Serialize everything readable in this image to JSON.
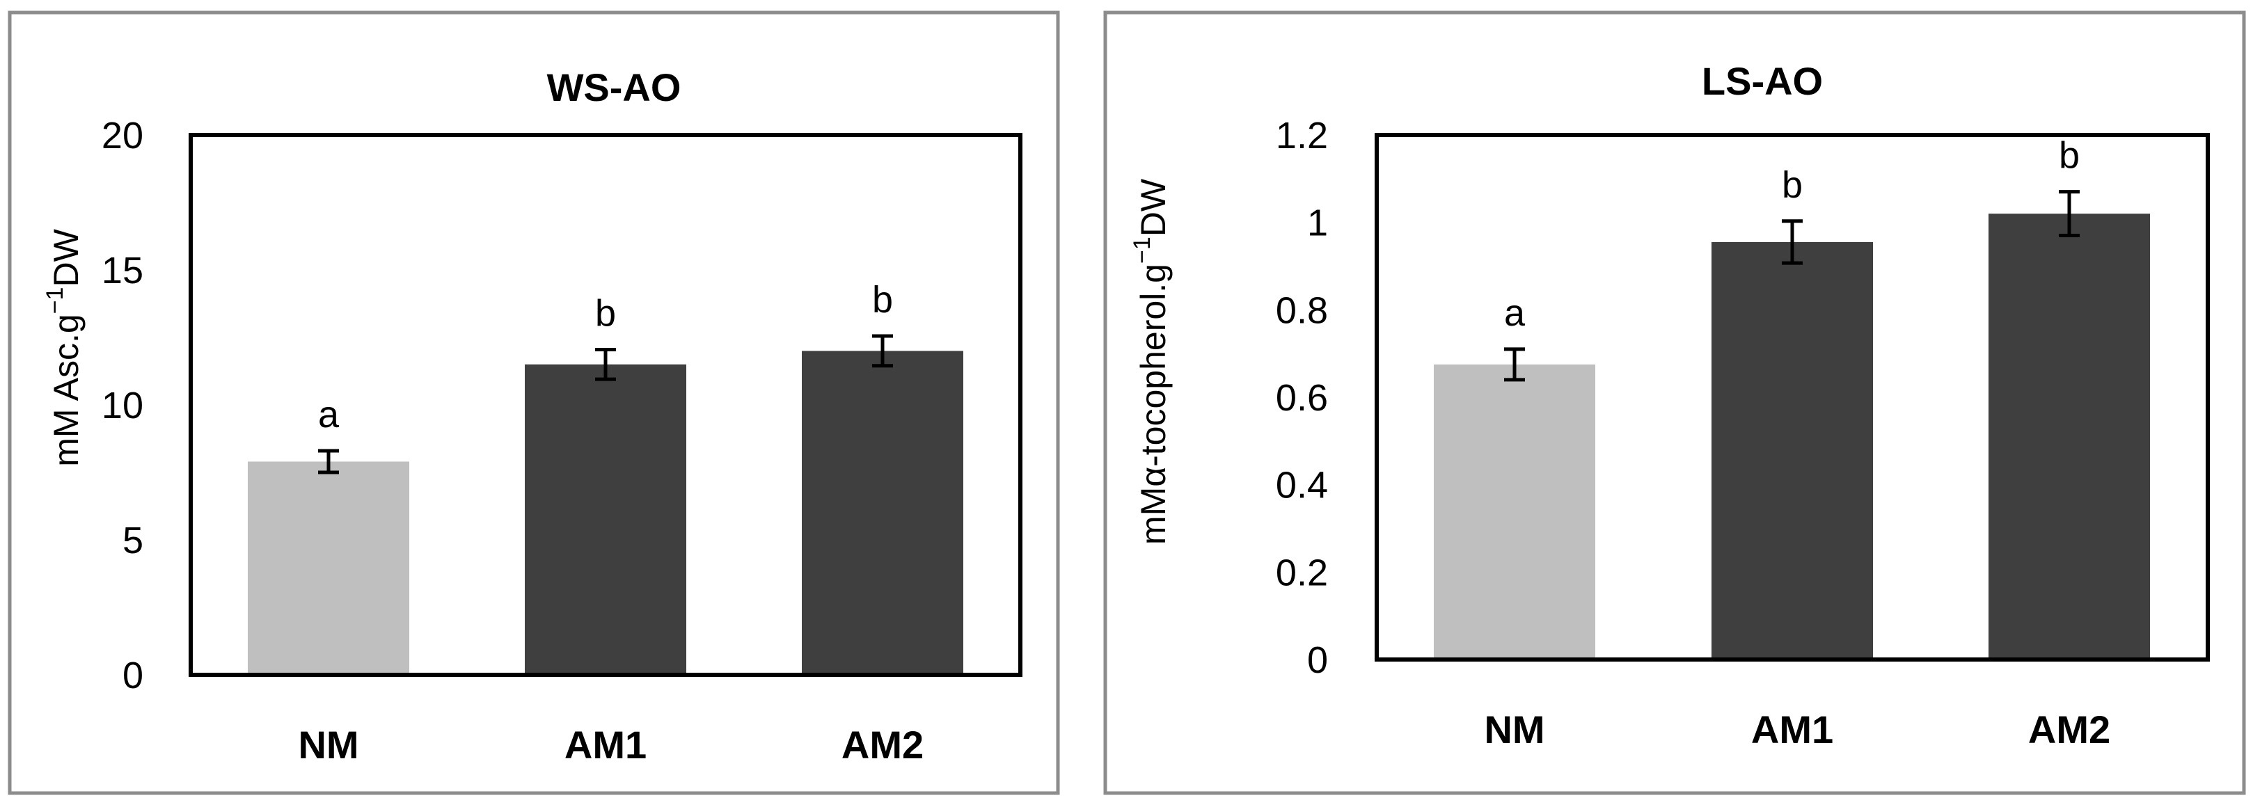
{
  "colors": {
    "bar_control": "#bfbfbf",
    "bar_treatment": "#3f3f3f",
    "frame": "#8c8c8c",
    "axis": "#000000"
  },
  "chart_data": [
    {
      "type": "bar",
      "title": "WS-AO",
      "ylabel_parts": {
        "main": "mM Asc.g",
        "sup": "−1",
        "tail": "DW"
      },
      "ylim": [
        0,
        20
      ],
      "yticks": [
        0,
        5,
        10,
        15,
        20
      ],
      "ytick_labels": [
        "0",
        "5",
        "10",
        "15",
        "20"
      ],
      "categories": [
        "NM",
        "AM1",
        "AM2"
      ],
      "values": [
        7.9,
        11.5,
        12.0
      ],
      "errors": [
        0.4,
        0.55,
        0.55
      ],
      "significance": [
        "a",
        "b",
        "b"
      ],
      "bar_colors": [
        "#bfbfbf",
        "#3f3f3f",
        "#3f3f3f"
      ]
    },
    {
      "type": "bar",
      "title": "LS-AO",
      "ylabel_parts": {
        "main": "mMα-tocopherol.g",
        "sup": "−1",
        "tail": "DW"
      },
      "ylim": [
        0,
        1.2
      ],
      "yticks": [
        0,
        0.2,
        0.4,
        0.6,
        0.8,
        1,
        1.2
      ],
      "ytick_labels": [
        "0",
        "0.2",
        "0.4",
        "0.6",
        "0.8",
        "1",
        "1.2"
      ],
      "categories": [
        "NM",
        "AM1",
        "AM2"
      ],
      "values": [
        0.675,
        0.955,
        1.02
      ],
      "errors": [
        0.035,
        0.048,
        0.05
      ],
      "significance": [
        "a",
        "b",
        "b"
      ],
      "bar_colors": [
        "#bfbfbf",
        "#3f3f3f",
        "#3f3f3f"
      ]
    }
  ]
}
